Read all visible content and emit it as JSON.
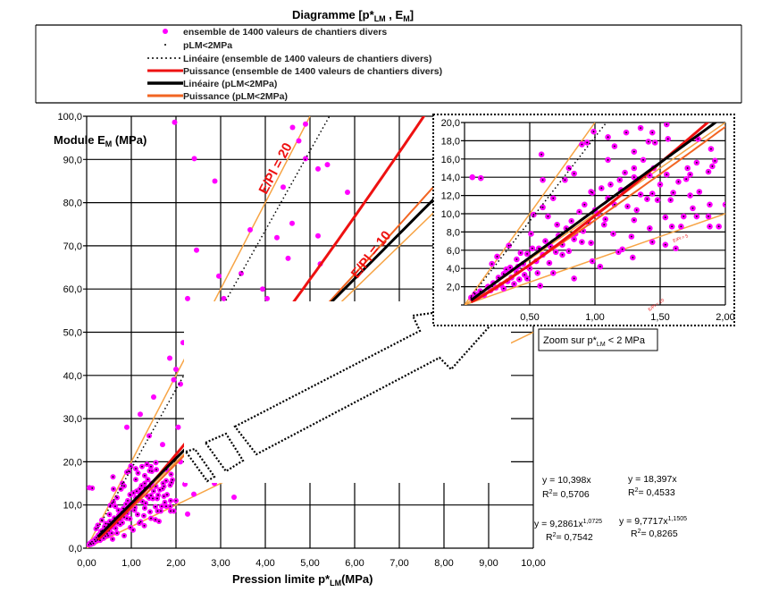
{
  "chart_data": {
    "type": "scatter",
    "title": "Diagramme [p*LM , EM]",
    "title_parts": {
      "pre": "Diagramme [p*",
      "sub1": "LM",
      "mid": " , E",
      "sub2": "M",
      "post": "]"
    },
    "xlabel_parts": {
      "pre": "Pression limite p*",
      "sub": "LM",
      "post": "(MPa)"
    },
    "ylabel_parts": {
      "pre": "Module E",
      "sub": "M",
      "post": " (MPa)"
    },
    "xlim": [
      0,
      10
    ],
    "ylim": [
      0,
      100
    ],
    "grid": true,
    "legend_placement": "top",
    "x_ticks": [
      "0,00",
      "1,00",
      "2,00",
      "3,00",
      "4,00",
      "5,00",
      "6,00",
      "7,00",
      "8,00",
      "9,00",
      "10,00"
    ],
    "y_ticks": [
      "0,0",
      "10,0",
      "20,0",
      "30,0",
      "40,0",
      "50,0",
      "60,0",
      "70,0",
      "80,0",
      "90,0",
      "100,0"
    ],
    "colors": {
      "points": "#ff00ff",
      "small_points": "#000000",
      "power_all": "#ee1111",
      "linear_plm": "#000000",
      "power_plm": "#f26522",
      "ratio_lines": "#f7a445"
    },
    "legend": [
      {
        "label": "ensemble de 1400 valeurs de chantiers divers",
        "marker": "magenta-dot"
      },
      {
        "label": "pLM<2MPa",
        "marker": "black-dot"
      },
      {
        "label": "Linéaire (ensemble de 1400 valeurs de chantiers divers)",
        "marker": "dotted-black-line"
      },
      {
        "label": "Puissance (ensemble de 1400 valeurs de chantiers divers)",
        "marker": "red-line"
      },
      {
        "label": "Linéaire (pLM<2MPa)",
        "marker": "black-line"
      },
      {
        "label": "Puissance (pLM<2MPa)",
        "marker": "orange-line"
      }
    ],
    "series": [
      {
        "name": "ensemble de 1400 valeurs de chantiers divers",
        "type": "scatter",
        "points": [
          [
            1.97,
            98.6
          ],
          [
            2.41,
            90.2
          ],
          [
            2.87,
            85
          ],
          [
            2.46,
            69
          ],
          [
            2.96,
            63
          ],
          [
            2.26,
            57.8
          ],
          [
            3.07,
            57.8
          ],
          [
            3.46,
            63.6
          ],
          [
            3.66,
            73.7
          ],
          [
            3.94,
            60
          ],
          [
            4.04,
            57.8
          ],
          [
            4.26,
            71.9
          ],
          [
            4.4,
            83.6
          ],
          [
            4.51,
            67.1
          ],
          [
            4.6,
            75.2
          ],
          [
            4.61,
            97.4
          ],
          [
            4.75,
            94.3
          ],
          [
            4.9,
            98.2
          ],
          [
            4.9,
            90.2
          ],
          [
            5.18,
            87.8
          ],
          [
            5.39,
            88.8
          ],
          [
            5.18,
            72.3
          ],
          [
            5.23,
            65.8
          ],
          [
            5.84,
            82.4
          ],
          [
            2.16,
            47.6
          ],
          [
            2.0,
            41.4
          ],
          [
            1.86,
            44
          ],
          [
            3.3,
            11.8
          ],
          [
            2.86,
            15
          ],
          [
            2.26,
            7.9
          ],
          [
            2.1,
            20
          ],
          [
            2.05,
            28
          ],
          [
            2.1,
            38
          ],
          [
            1.2,
            31
          ],
          [
            0.9,
            28
          ],
          [
            1.5,
            35
          ],
          [
            1.4,
            26
          ],
          [
            1.7,
            24
          ],
          [
            0.06,
            14
          ],
          [
            2.4,
            12.5
          ],
          [
            2.2,
            14.8
          ],
          [
            1.95,
            39
          ]
        ]
      },
      {
        "name": "pLM<2MPa",
        "type": "scatter",
        "points": [
          [
            0.125,
            13.9
          ],
          [
            0.59,
            16.5
          ],
          [
            0.6,
            13.7
          ],
          [
            0.99,
            19.0
          ],
          [
            0.94,
            17.8
          ],
          [
            0.9,
            17.6
          ],
          [
            0.8,
            15.0
          ],
          [
            0.84,
            14.4
          ],
          [
            0.77,
            13.7
          ],
          [
            0.68,
            11.7
          ],
          [
            0.6,
            10.7
          ],
          [
            0.53,
            9.9
          ],
          [
            0.64,
            9.7
          ],
          [
            0.71,
            8.8
          ],
          [
            0.51,
            7.8
          ],
          [
            0.57,
            6.2
          ],
          [
            0.43,
            5.7
          ],
          [
            0.34,
            6.5
          ],
          [
            0.25,
            5.3
          ],
          [
            0.21,
            4.5
          ],
          [
            0.32,
            3.9
          ],
          [
            0.41,
            4.2
          ],
          [
            0.48,
            2.9
          ],
          [
            0.58,
            2.1
          ],
          [
            0.84,
            2.9
          ],
          [
            0.68,
            3.5
          ],
          [
            0.75,
            5.5
          ],
          [
            0.84,
            7.2
          ],
          [
            0.91,
            8.1
          ],
          [
            0.97,
            6.8
          ],
          [
            0.98,
            4.8
          ],
          [
            1.04,
            4.2
          ],
          [
            1.0,
            10.4
          ],
          [
            0.97,
            12.4
          ],
          [
            1.1,
            11.7
          ],
          [
            1.07,
            8.8
          ],
          [
            1.14,
            7.8
          ],
          [
            1.18,
            5.8
          ],
          [
            1.21,
            6.1
          ],
          [
            1.1,
            15.9
          ],
          [
            1.15,
            17.4
          ],
          [
            1.1,
            18.4
          ],
          [
            1.24,
            18.9
          ],
          [
            1.35,
            19.4
          ],
          [
            1.3,
            16.8
          ],
          [
            1.23,
            14.5
          ],
          [
            1.3,
            15.0
          ],
          [
            1.19,
            13.7
          ],
          [
            1.32,
            10.4
          ],
          [
            1.3,
            9.3
          ],
          [
            1.28,
            7.5
          ],
          [
            1.29,
            5.2
          ],
          [
            1.37,
            15.9
          ],
          [
            1.41,
            17.9
          ],
          [
            1.44,
            18.9
          ],
          [
            1.46,
            17.8
          ],
          [
            1.42,
            14.2
          ],
          [
            1.44,
            12.2
          ],
          [
            1.48,
            11.5
          ],
          [
            1.42,
            8.4
          ],
          [
            1.44,
            6.9
          ],
          [
            1.54,
            9.6
          ],
          [
            1.55,
            19.8
          ],
          [
            1.56,
            18.2
          ],
          [
            1.55,
            14.3
          ],
          [
            1.58,
            11.5
          ],
          [
            1.59,
            8.6
          ],
          [
            1.54,
            6.6
          ],
          [
            1.62,
            6.2
          ],
          [
            1.64,
            13.5
          ],
          [
            1.68,
            9.7
          ],
          [
            1.66,
            8.6
          ],
          [
            1.71,
            15.0
          ],
          [
            1.73,
            14.3
          ],
          [
            1.73,
            12.0
          ],
          [
            1.75,
            10.6
          ],
          [
            1.79,
            18.2
          ],
          [
            1.78,
            15.6
          ],
          [
            1.78,
            9.7
          ],
          [
            1.87,
            14.6
          ],
          [
            1.89,
            17.1
          ],
          [
            1.88,
            11.0
          ],
          [
            1.87,
            9.7
          ],
          [
            1.88,
            8.6
          ],
          [
            1.95,
            8.6
          ],
          [
            1.92,
            15.8
          ],
          [
            2.0,
            11.0
          ],
          [
            0.05,
            0.8
          ],
          [
            0.08,
            1.2
          ],
          [
            0.1,
            0.9
          ],
          [
            0.12,
            1.5
          ],
          [
            0.15,
            1.1
          ],
          [
            0.18,
            2.0
          ],
          [
            0.2,
            1.6
          ],
          [
            0.22,
            2.4
          ],
          [
            0.24,
            1.9
          ],
          [
            0.26,
            3.0
          ],
          [
            0.28,
            2.2
          ],
          [
            0.3,
            3.4
          ],
          [
            0.3,
            1.8
          ],
          [
            0.33,
            2.6
          ],
          [
            0.35,
            4.1
          ],
          [
            0.36,
            3.0
          ],
          [
            0.38,
            2.3
          ],
          [
            0.4,
            3.6
          ],
          [
            0.4,
            5.0
          ],
          [
            0.42,
            2.8
          ],
          [
            0.45,
            4.5
          ],
          [
            0.46,
            3.3
          ],
          [
            0.48,
            5.6
          ],
          [
            0.5,
            4.0
          ],
          [
            0.52,
            6.2
          ],
          [
            0.55,
            4.8
          ],
          [
            0.56,
            3.5
          ],
          [
            0.6,
            5.5
          ],
          [
            0.62,
            7.0
          ],
          [
            0.65,
            4.6
          ],
          [
            0.66,
            6.4
          ],
          [
            0.7,
            5.8
          ],
          [
            0.72,
            7.6
          ],
          [
            0.75,
            6.6
          ],
          [
            0.78,
            8.4
          ],
          [
            0.8,
            5.9
          ],
          [
            0.82,
            9.2
          ],
          [
            0.85,
            7.8
          ],
          [
            0.88,
            10.2
          ],
          [
            0.9,
            6.9
          ],
          [
            0.92,
            11.0
          ],
          [
            0.95,
            9.0
          ],
          [
            0.98,
            12.3
          ],
          [
            1.02,
            10.0
          ],
          [
            1.05,
            12.8
          ],
          [
            1.08,
            9.4
          ],
          [
            1.12,
            13.2
          ],
          [
            1.15,
            11.0
          ],
          [
            1.2,
            12.6
          ],
          [
            1.25,
            10.8
          ],
          [
            1.3,
            14.0
          ],
          [
            1.35,
            12.1
          ],
          [
            1.4,
            11.6
          ],
          [
            1.45,
            15.0
          ],
          [
            1.5,
            13.2
          ],
          [
            1.6,
            12.3
          ],
          [
            1.7,
            13.8
          ],
          [
            1.8,
            12.4
          ],
          [
            1.9,
            15.2
          ]
        ]
      }
    ],
    "trendlines": [
      {
        "name": "Linéaire (ensemble de 1400 valeurs de chantiers divers)",
        "kind": "linear",
        "a": 18.397,
        "b": 1,
        "style": "dotted-black"
      },
      {
        "name": "Puissance (ensemble de 1400 valeurs de chantiers divers)",
        "kind": "power",
        "a": 9.7717,
        "b": 1.1505,
        "style": "red"
      },
      {
        "name": "Linéaire (pLM<2MPa)",
        "kind": "linear",
        "a": 10.398,
        "b": 1,
        "style": "black"
      },
      {
        "name": "Puissance (pLM<2MPa)",
        "kind": "power",
        "a": 9.2861,
        "b": 1.0725,
        "style": "orange"
      }
    ],
    "ratio_lines": [
      20,
      10,
      5
    ],
    "annotations": {
      "ratio20": "E/Pl = 20",
      "ratio10": "E/Pl = 10",
      "inset_ratio10": "E/Pl = 10",
      "inset_ratio5": "E/Pl = 5"
    },
    "equations": [
      {
        "eq_pre": "y = 10,398x",
        "eq_exp": "",
        "r2": "= 0,5706"
      },
      {
        "eq_pre": "y = 18,397x",
        "eq_exp": "",
        "r2": "= 0,4533"
      },
      {
        "eq_pre": "y = 9,2861x",
        "eq_exp": "1,0725",
        "r2": "= 0,7542"
      },
      {
        "eq_pre": "y = 9,7717x",
        "eq_exp": "1,1505",
        "r2": "= 0,8265"
      }
    ],
    "r2_label": "R",
    "r2_sup": "2",
    "inset": {
      "xlim": [
        0,
        2
      ],
      "ylim": [
        0,
        20
      ],
      "x_ticks": [
        "0,50",
        "1,00",
        "1,50",
        "2,00"
      ],
      "y_ticks": [
        "2,0",
        "4,0",
        "6,0",
        "8,0",
        "10,0",
        "12,0",
        "14,0",
        "16,0",
        "18,0",
        "20,0"
      ],
      "caption_parts": {
        "pre": "Zoom sur p*",
        "sub": "LM",
        "post": " < 2 MPa"
      }
    }
  }
}
